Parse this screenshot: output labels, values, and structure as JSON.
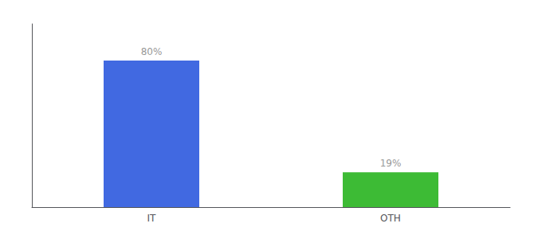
{
  "chart_data": {
    "type": "bar",
    "categories": [
      "IT",
      "OTH"
    ],
    "values": [
      80,
      19
    ],
    "value_labels": [
      "80%",
      "19%"
    ],
    "data_labels": true,
    "colors": [
      "#4169e1",
      "#3dbb35"
    ],
    "ylim": [
      0,
      100
    ],
    "tick_labels": "x",
    "grid": false
  }
}
